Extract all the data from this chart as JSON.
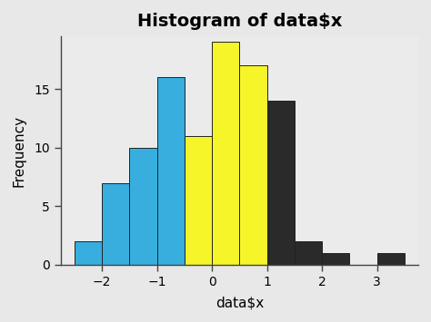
{
  "title": "Histogram of data$x",
  "xlabel": "data$x",
  "ylabel": "Frequency",
  "bin_edges": [
    -2.5,
    -2.0,
    -1.5,
    -1.0,
    -0.5,
    0.0,
    0.5,
    1.0,
    1.5,
    2.0,
    2.5,
    3.0,
    3.5
  ],
  "heights": [
    2,
    7,
    10,
    16,
    11,
    19,
    17,
    14,
    2,
    1,
    0,
    1
  ],
  "colors": [
    "#37AEDE",
    "#37AEDE",
    "#37AEDE",
    "#37AEDE",
    "#F5F52A",
    "#F5F52A",
    "#F5F52A",
    "#2A2A2A",
    "#2A2A2A",
    "#2A2A2A",
    "#2A2A2A",
    "#2A2A2A"
  ],
  "edge_color": "#222222",
  "fig_background_color": "#E8E8E8",
  "plot_background_color": "#EBEBEB",
  "xlim": [
    -2.75,
    3.75
  ],
  "ylim": [
    0,
    19.5
  ],
  "yticks": [
    0,
    5,
    10,
    15
  ],
  "xticks": [
    -2,
    -1,
    0,
    1,
    2,
    3
  ],
  "title_fontsize": 14,
  "label_fontsize": 11,
  "tick_fontsize": 10
}
